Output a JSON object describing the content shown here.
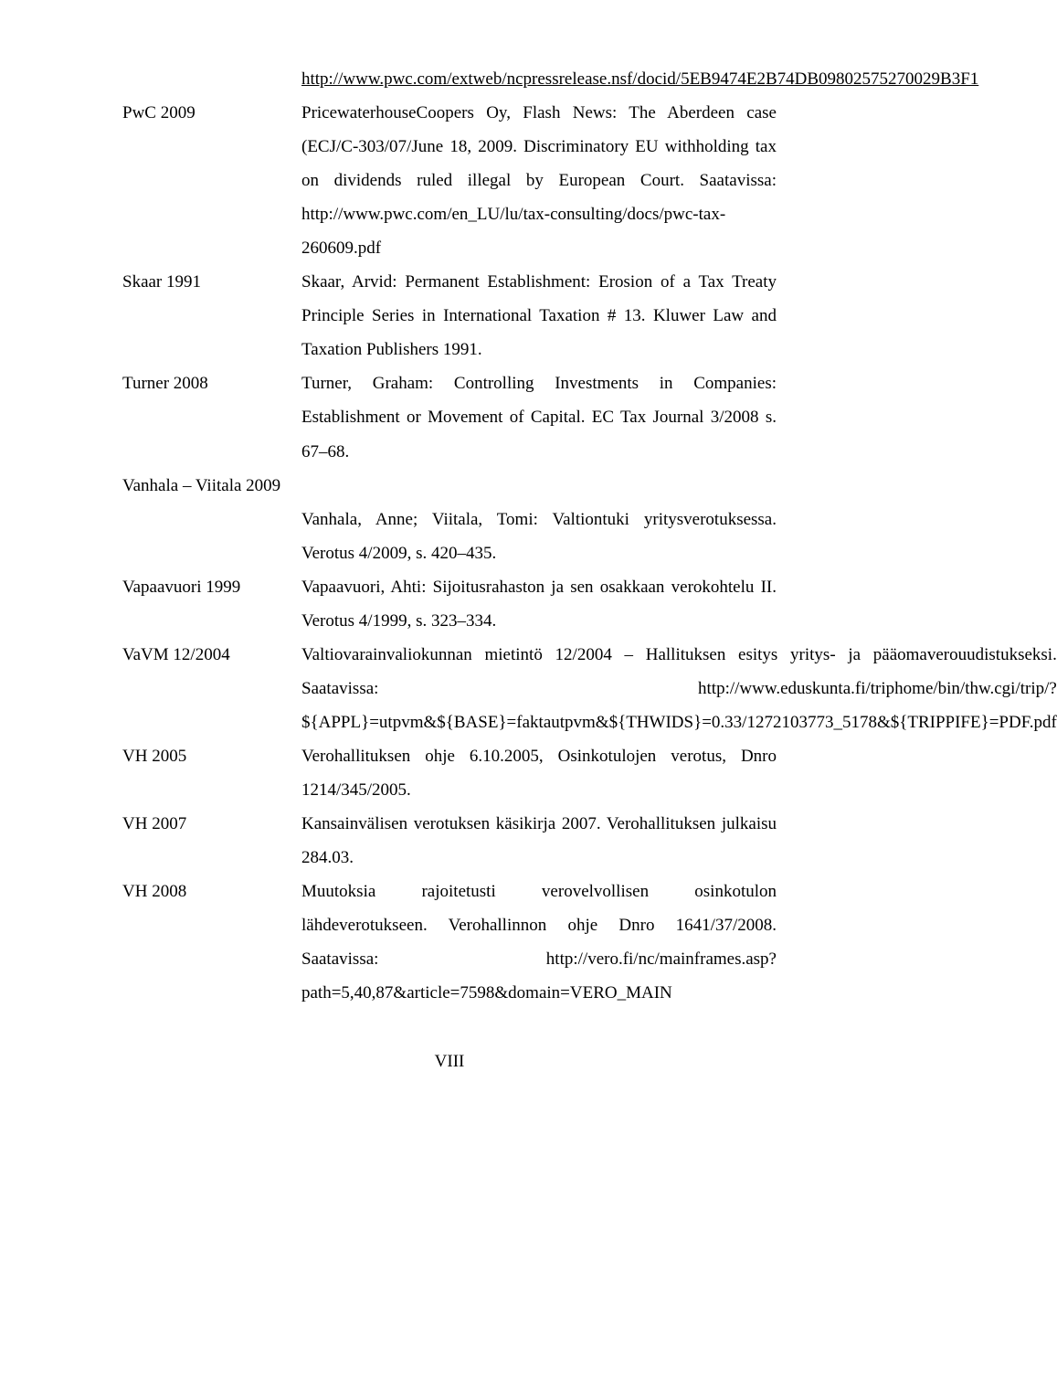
{
  "entries": [
    {
      "label": "",
      "html": "<a href='#'>http://www.pwc.com/extweb/ncpressrelease.nsf/docid/5EB9474E2B74DB09802575270029B3F1</a>"
    },
    {
      "label": "PwC 2009",
      "html": "PricewaterhouseCoopers Oy, Flash News: The Aberdeen case (ECJ/C-303/07/June 18, 2009. Discriminatory EU withholding tax on dividends ruled illegal by European Court. Saatavissa: http://www.pwc.com/en_LU/lu/tax-consulting/docs/pwc-tax-260609.pdf"
    },
    {
      "label": "Skaar 1991",
      "html": "Skaar, Arvid: Permanent Establishment: Erosion of a Tax Treaty Principle Series in International Taxation # 13. Kluwer Law and Taxation Publishers 1991."
    },
    {
      "label": "Turner 2008",
      "html": "Turner, Graham: Controlling Investments in Companies: Establishment or Movement of Capital. EC Tax Journal 3/2008 s. 67&#8211;68."
    },
    {
      "label": "Vanhala &#8211; Viitala 2009",
      "span": true,
      "html": "Vanhala, Anne; Viitala, Tomi: Valtiontuki yritysverotuksessa. Verotus 4/2009, s. 420&#8211;435."
    },
    {
      "label": "Vapaavuori 1999",
      "html": "Vapaavuori, Ahti: Sijoitusrahaston ja sen osakkaan verokohtelu II. Verotus 4/1999, s. 323&#8211;334."
    },
    {
      "label": "VaVM 12/2004",
      "html": "Valtiovarainvaliokunnan mietint&ouml; 12/2004 &#8211; Hallituksen esitys yritys- ja p&auml;&auml;omaverouudistukseksi. Saatavissa: http://www.eduskunta.fi/triphome/bin/thw.cgi/trip/?${APPL}=utpvm&amp;${BASE}=faktautpvm&amp;${THWIDS}=0.33/1272103773_5178&amp;${TRIPPIFE}=PDF.pdf"
    },
    {
      "label": "VH 2005",
      "html": "Verohallituksen ohje 6.10.2005, Osinkotulojen verotus, Dnro 1214/345/2005."
    },
    {
      "label": "VH 2007",
      "html": "Kansainv&auml;lisen verotuksen k&auml;sikirja 2007. Verohallituksen julkaisu 284.03."
    },
    {
      "label": "VH 2008",
      "html": "Muutoksia rajoitetusti verovelvollisen osinkotulon l&auml;hdeverotukseen. Verohallinnon ohje Dnro 1641/37/2008. Saatavissa: http://vero.fi/nc/mainframes.asp?path=5,40,87&amp;article=7598&amp;domain=VERO_MAIN"
    }
  ],
  "page_number": "VIII"
}
